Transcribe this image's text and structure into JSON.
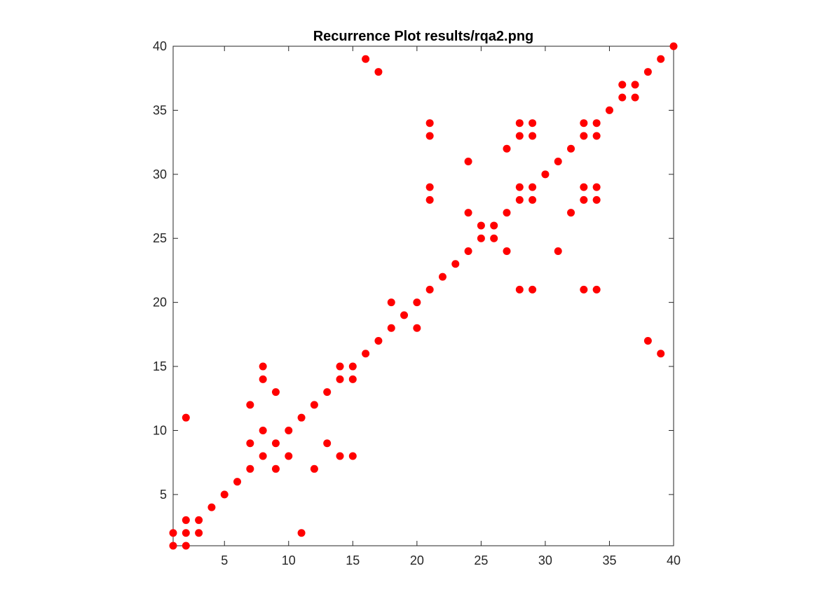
{
  "chart_data": {
    "type": "scatter",
    "title": "Recurrence Plot results/rqa2.png",
    "xlabel": "",
    "ylabel": "",
    "xlim": [
      1,
      40
    ],
    "ylim": [
      1,
      40
    ],
    "xticks": [
      5,
      10,
      15,
      20,
      25,
      30,
      35,
      40
    ],
    "yticks": [
      5,
      10,
      15,
      20,
      25,
      30,
      35,
      40
    ],
    "grid": false,
    "marker_color": "#ff0000",
    "points": [
      [
        1,
        1
      ],
      [
        1,
        2
      ],
      [
        2,
        1
      ],
      [
        2,
        2
      ],
      [
        2,
        3
      ],
      [
        3,
        2
      ],
      [
        3,
        3
      ],
      [
        2,
        11
      ],
      [
        11,
        2
      ],
      [
        4,
        4
      ],
      [
        5,
        5
      ],
      [
        6,
        6
      ],
      [
        7,
        7
      ],
      [
        8,
        8
      ],
      [
        9,
        9
      ],
      [
        10,
        10
      ],
      [
        11,
        11
      ],
      [
        12,
        12
      ],
      [
        13,
        13
      ],
      [
        14,
        14
      ],
      [
        15,
        15
      ],
      [
        16,
        16
      ],
      [
        17,
        17
      ],
      [
        18,
        18
      ],
      [
        19,
        19
      ],
      [
        20,
        20
      ],
      [
        21,
        21
      ],
      [
        22,
        22
      ],
      [
        23,
        23
      ],
      [
        24,
        24
      ],
      [
        25,
        25
      ],
      [
        26,
        26
      ],
      [
        27,
        27
      ],
      [
        28,
        28
      ],
      [
        29,
        29
      ],
      [
        30,
        30
      ],
      [
        31,
        31
      ],
      [
        32,
        32
      ],
      [
        33,
        33
      ],
      [
        34,
        34
      ],
      [
        35,
        35
      ],
      [
        36,
        36
      ],
      [
        37,
        37
      ],
      [
        38,
        38
      ],
      [
        39,
        39
      ],
      [
        40,
        40
      ],
      [
        7,
        9
      ],
      [
        9,
        7
      ],
      [
        7,
        12
      ],
      [
        12,
        7
      ],
      [
        8,
        10
      ],
      [
        10,
        8
      ],
      [
        8,
        14
      ],
      [
        14,
        8
      ],
      [
        8,
        15
      ],
      [
        15,
        8
      ],
      [
        9,
        13
      ],
      [
        13,
        9
      ],
      [
        14,
        15
      ],
      [
        15,
        14
      ],
      [
        18,
        20
      ],
      [
        20,
        18
      ],
      [
        17,
        38
      ],
      [
        38,
        17
      ],
      [
        16,
        39
      ],
      [
        39,
        16
      ],
      [
        21,
        28
      ],
      [
        28,
        21
      ],
      [
        21,
        29
      ],
      [
        29,
        21
      ],
      [
        21,
        33
      ],
      [
        33,
        21
      ],
      [
        21,
        34
      ],
      [
        34,
        21
      ],
      [
        24,
        27
      ],
      [
        27,
        24
      ],
      [
        24,
        31
      ],
      [
        31,
        24
      ],
      [
        25,
        26
      ],
      [
        26,
        25
      ],
      [
        27,
        32
      ],
      [
        32,
        27
      ],
      [
        28,
        29
      ],
      [
        29,
        28
      ],
      [
        28,
        33
      ],
      [
        33,
        28
      ],
      [
        28,
        34
      ],
      [
        34,
        28
      ],
      [
        29,
        33
      ],
      [
        33,
        29
      ],
      [
        29,
        34
      ],
      [
        34,
        29
      ],
      [
        33,
        34
      ],
      [
        34,
        33
      ],
      [
        36,
        37
      ],
      [
        37,
        36
      ]
    ]
  }
}
